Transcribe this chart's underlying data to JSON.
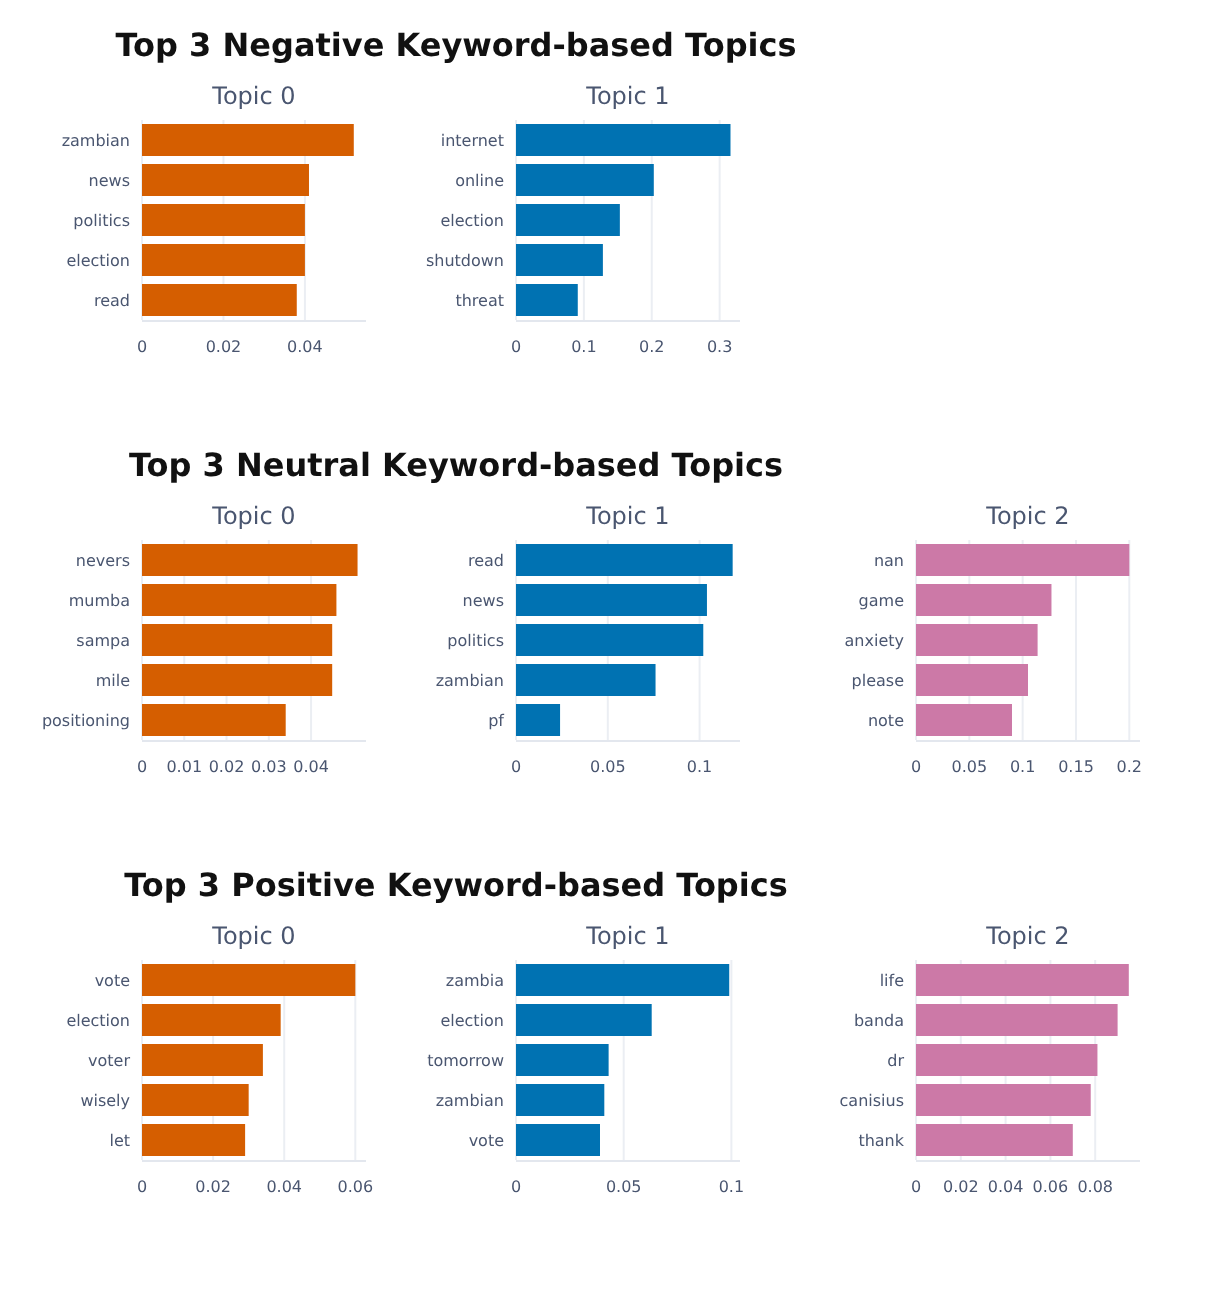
{
  "chart_data": [
    {
      "type": "bar",
      "orientation": "horizontal",
      "subtitle": "Topic 0",
      "categories": [
        "zambian",
        "news",
        "politics",
        "election",
        "read"
      ],
      "values": [
        0.052,
        0.041,
        0.04,
        0.04,
        0.038
      ],
      "color": "#d55e00",
      "xlim": [
        0,
        0.055
      ],
      "xticks": [
        0,
        0.02,
        0.04
      ],
      "grid": "x"
    },
    {
      "type": "bar",
      "orientation": "horizontal",
      "title": "Top 3 Negative Keyword-based Topics",
      "subtitle": "Topic 1",
      "categories": [
        "internet",
        "online",
        "election",
        "shutdown",
        "threat"
      ],
      "values": [
        0.316,
        0.203,
        0.153,
        0.128,
        0.091
      ],
      "color": "#0072b2",
      "xlim": [
        0,
        0.33
      ],
      "xticks": [
        0,
        0.1,
        0.2,
        0.3
      ],
      "grid": "x"
    },
    {
      "type": "bar",
      "orientation": "horizontal",
      "subtitle": "Topic 0",
      "categories": [
        "nevers",
        "mumba",
        "sampa",
        "mile",
        "positioning"
      ],
      "values": [
        0.051,
        0.046,
        0.045,
        0.045,
        0.034
      ],
      "color": "#d55e00",
      "xlim": [
        0,
        0.053
      ],
      "xticks": [
        0,
        0.01,
        0.02,
        0.03,
        0.04
      ],
      "grid": "x"
    },
    {
      "type": "bar",
      "orientation": "horizontal",
      "title": "Top 3 Neutral Keyword-based Topics",
      "subtitle": "Topic 1",
      "categories": [
        "read",
        "news",
        "politics",
        "zambian",
        "pf"
      ],
      "values": [
        0.118,
        0.104,
        0.102,
        0.076,
        0.024
      ],
      "color": "#0072b2",
      "xlim": [
        0,
        0.122
      ],
      "xticks": [
        0,
        0.05,
        0.1
      ],
      "grid": "x"
    },
    {
      "type": "bar",
      "orientation": "horizontal",
      "subtitle": "Topic 2",
      "categories": [
        "nan",
        "game",
        "anxiety",
        "please",
        "note"
      ],
      "values": [
        0.2,
        0.127,
        0.114,
        0.105,
        0.09
      ],
      "color": "#cc79a7",
      "xlim": [
        0,
        0.21
      ],
      "xticks": [
        0,
        0.05,
        0.1,
        0.15,
        0.2
      ],
      "grid": "x"
    },
    {
      "type": "bar",
      "orientation": "horizontal",
      "subtitle": "Topic 0",
      "categories": [
        "vote",
        "election",
        "voter",
        "wisely",
        "let"
      ],
      "values": [
        0.06,
        0.039,
        0.034,
        0.03,
        0.029
      ],
      "color": "#d55e00",
      "xlim": [
        0,
        0.063
      ],
      "xticks": [
        0,
        0.02,
        0.04,
        0.06
      ],
      "grid": "x"
    },
    {
      "type": "bar",
      "orientation": "horizontal",
      "title": "Top 3 Positive Keyword-based Topics",
      "subtitle": "Topic 1",
      "categories": [
        "zambia",
        "election",
        "tomorrow",
        "zambian",
        "vote"
      ],
      "values": [
        0.099,
        0.063,
        0.043,
        0.041,
        0.039
      ],
      "color": "#0072b2",
      "xlim": [
        0,
        0.104
      ],
      "xticks": [
        0,
        0.05,
        0.1
      ],
      "grid": "x"
    },
    {
      "type": "bar",
      "orientation": "horizontal",
      "subtitle": "Topic 2",
      "categories": [
        "life",
        "banda",
        "dr",
        "canisius",
        "thank"
      ],
      "values": [
        0.095,
        0.09,
        0.081,
        0.078,
        0.07
      ],
      "color": "#cc79a7",
      "xlim": [
        0,
        0.1
      ],
      "xticks": [
        0,
        0.02,
        0.04,
        0.06,
        0.08
      ],
      "grid": "x"
    }
  ]
}
